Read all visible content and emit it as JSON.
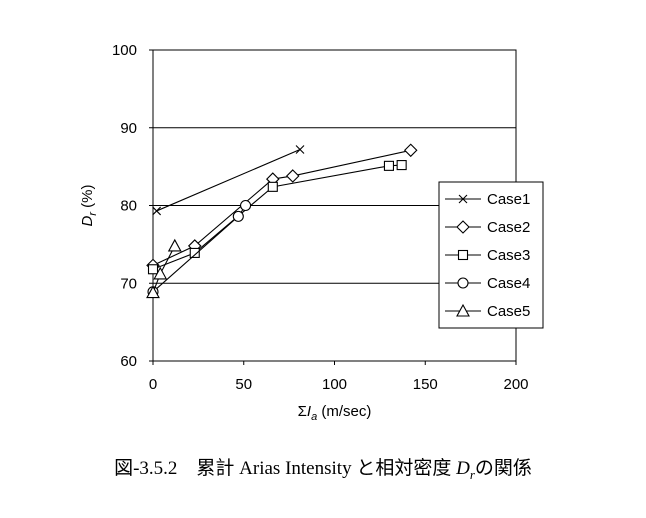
{
  "caption": {
    "figure_number": "図-3.5.2",
    "title_prefix": "累計 Arias Intensity と相対密度 ",
    "title_symbol": "D",
    "title_symbol_sub": "r",
    "title_suffix": "の関係"
  },
  "chart_data": {
    "type": "line",
    "title": "",
    "xlabel": {
      "prefix": "Σ",
      "symbol": "I",
      "sub": "a",
      "unit": " (m/sec)"
    },
    "ylabel": {
      "symbol": "D",
      "sub": "r",
      "unit": " (%)"
    },
    "xlim": [
      0,
      200
    ],
    "ylim": [
      60,
      100
    ],
    "xticks": [
      0,
      50,
      100,
      150,
      200
    ],
    "yticks": [
      60,
      70,
      80,
      90,
      100
    ],
    "grid": "horizontal",
    "legend_position": "right",
    "series": [
      {
        "name": "Case1",
        "marker": "x",
        "x": [
          2,
          81
        ],
        "y": [
          79.3,
          87.2
        ]
      },
      {
        "name": "Case2",
        "marker": "diamond",
        "x": [
          0,
          23,
          66,
          77,
          142
        ],
        "y": [
          72.3,
          74.8,
          83.4,
          83.8,
          87.1
        ]
      },
      {
        "name": "Case3",
        "marker": "square",
        "x": [
          0,
          23,
          66,
          130,
          137
        ],
        "y": [
          71.8,
          73.9,
          82.4,
          85.1,
          85.2
        ]
      },
      {
        "name": "Case4",
        "marker": "circle",
        "x": [
          0,
          47,
          51
        ],
        "y": [
          68.9,
          78.6,
          80.0
        ]
      },
      {
        "name": "Case5",
        "marker": "triangle",
        "x": [
          0,
          4,
          12
        ],
        "y": [
          68.8,
          71.2,
          74.8
        ]
      }
    ]
  }
}
